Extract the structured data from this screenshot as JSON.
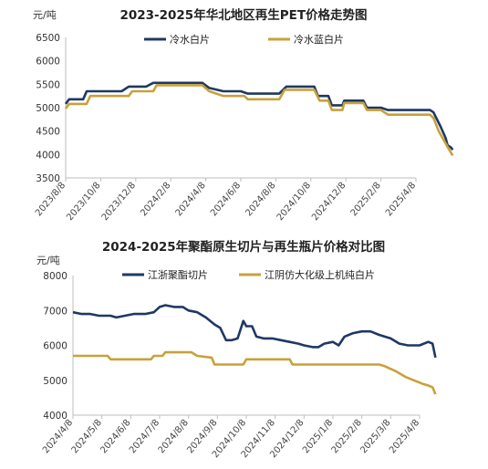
{
  "chart_data": [
    {
      "type": "line",
      "title": "2023-2025年华北地区再生PET价格走势图",
      "unit": "元/吨",
      "ylim": [
        3500,
        6500
      ],
      "yticks": [
        3500,
        4000,
        4500,
        5000,
        5500,
        6000,
        6500
      ],
      "xlabels": [
        "2023/8/8",
        "2023/10/8",
        "2023/12/8",
        "2024/2/8",
        "2024/4/8",
        "2024/6/8",
        "2024/8/8",
        "2024/10/8",
        "2024/12/8",
        "2025/2/8",
        "2025/4/8"
      ],
      "legend_position": "top",
      "series": [
        {
          "name": "冷水白片",
          "color": "#1f3864",
          "points": [
            [
              0,
              5080
            ],
            [
              0.1,
              5180
            ],
            [
              0.5,
              5180
            ],
            [
              0.6,
              5350
            ],
            [
              1.6,
              5350
            ],
            [
              1.8,
              5450
            ],
            [
              2.3,
              5450
            ],
            [
              2.5,
              5530
            ],
            [
              3.9,
              5530
            ],
            [
              4.1,
              5420
            ],
            [
              4.5,
              5350
            ],
            [
              5.0,
              5350
            ],
            [
              5.2,
              5300
            ],
            [
              6.1,
              5300
            ],
            [
              6.3,
              5450
            ],
            [
              7.1,
              5450
            ],
            [
              7.2,
              5250
            ],
            [
              7.5,
              5250
            ],
            [
              7.6,
              5050
            ],
            [
              7.9,
              5050
            ],
            [
              7.95,
              5150
            ],
            [
              8.5,
              5150
            ],
            [
              8.6,
              5000
            ],
            [
              9.0,
              5000
            ],
            [
              9.2,
              4950
            ],
            [
              10.4,
              4950
            ],
            [
              10.5,
              4900
            ],
            [
              10.7,
              4600
            ],
            [
              10.85,
              4350
            ],
            [
              10.9,
              4200
            ],
            [
              11.0,
              4150
            ],
            [
              11.05,
              4100
            ]
          ]
        },
        {
          "name": "冷水蓝白片",
          "color": "#c8a13a",
          "points": [
            [
              0,
              4980
            ],
            [
              0.1,
              5080
            ],
            [
              0.6,
              5080
            ],
            [
              0.7,
              5250
            ],
            [
              1.8,
              5250
            ],
            [
              1.9,
              5350
            ],
            [
              2.5,
              5350
            ],
            [
              2.6,
              5480
            ],
            [
              3.9,
              5480
            ],
            [
              4.1,
              5350
            ],
            [
              4.5,
              5250
            ],
            [
              5.1,
              5250
            ],
            [
              5.2,
              5180
            ],
            [
              6.1,
              5180
            ],
            [
              6.25,
              5380
            ],
            [
              7.1,
              5380
            ],
            [
              7.25,
              5150
            ],
            [
              7.5,
              5150
            ],
            [
              7.6,
              4950
            ],
            [
              7.9,
              4950
            ],
            [
              7.95,
              5100
            ],
            [
              8.5,
              5100
            ],
            [
              8.6,
              4950
            ],
            [
              9.0,
              4950
            ],
            [
              9.2,
              4850
            ],
            [
              10.4,
              4850
            ],
            [
              10.5,
              4780
            ],
            [
              10.65,
              4500
            ],
            [
              10.8,
              4300
            ],
            [
              10.95,
              4100
            ],
            [
              11.05,
              3980
            ]
          ]
        }
      ]
    },
    {
      "type": "line",
      "title": "2024-2025年聚酯原生切片与再生瓶片价格对比图",
      "unit": "元/吨",
      "ylim": [
        4000,
        8000
      ],
      "yticks": [
        4000,
        5000,
        6000,
        7000,
        8000
      ],
      "xlabels": [
        "2024/4/8",
        "2024/5/8",
        "2024/6/8",
        "2024/7/8",
        "2024/8/8",
        "2024/9/8",
        "2024/10/8",
        "2024/11/8",
        "2024/12/8",
        "2025/1/8",
        "2025/2/8",
        "2025/3/8",
        "2025/4/8"
      ],
      "legend_position": "top",
      "series": [
        {
          "name": "江浙聚酯切片",
          "color": "#1f3864",
          "points": [
            [
              0,
              6950
            ],
            [
              0.3,
              6900
            ],
            [
              0.6,
              6900
            ],
            [
              0.9,
              6850
            ],
            [
              1.3,
              6850
            ],
            [
              1.5,
              6800
            ],
            [
              1.8,
              6850
            ],
            [
              2.1,
              6900
            ],
            [
              2.5,
              6900
            ],
            [
              2.8,
              6950
            ],
            [
              3.0,
              7100
            ],
            [
              3.2,
              7150
            ],
            [
              3.5,
              7100
            ],
            [
              3.8,
              7100
            ],
            [
              4.0,
              7000
            ],
            [
              4.3,
              6950
            ],
            [
              4.6,
              6800
            ],
            [
              4.9,
              6600
            ],
            [
              5.1,
              6500
            ],
            [
              5.3,
              6150
            ],
            [
              5.5,
              6150
            ],
            [
              5.7,
              6200
            ],
            [
              5.9,
              6700
            ],
            [
              6.0,
              6550
            ],
            [
              6.2,
              6550
            ],
            [
              6.35,
              6250
            ],
            [
              6.6,
              6200
            ],
            [
              6.9,
              6200
            ],
            [
              7.2,
              6150
            ],
            [
              7.5,
              6100
            ],
            [
              7.8,
              6050
            ],
            [
              8.0,
              6000
            ],
            [
              8.3,
              5950
            ],
            [
              8.5,
              5950
            ],
            [
              8.7,
              6050
            ],
            [
              9.0,
              6100
            ],
            [
              9.2,
              6000
            ],
            [
              9.4,
              6250
            ],
            [
              9.7,
              6350
            ],
            [
              10.0,
              6400
            ],
            [
              10.3,
              6400
            ],
            [
              10.6,
              6300
            ],
            [
              11.0,
              6200
            ],
            [
              11.3,
              6050
            ],
            [
              11.6,
              6000
            ],
            [
              12.0,
              6000
            ],
            [
              12.3,
              6100
            ],
            [
              12.45,
              6050
            ],
            [
              12.55,
              5650
            ]
          ]
        },
        {
          "name": "江阴仿大化级上机纯白片",
          "color": "#c8a13a",
          "points": [
            [
              0,
              5700
            ],
            [
              0.5,
              5700
            ],
            [
              1.2,
              5700
            ],
            [
              1.3,
              5600
            ],
            [
              2.7,
              5600
            ],
            [
              2.8,
              5700
            ],
            [
              3.1,
              5700
            ],
            [
              3.2,
              5800
            ],
            [
              4.1,
              5800
            ],
            [
              4.3,
              5700
            ],
            [
              4.8,
              5650
            ],
            [
              4.9,
              5450
            ],
            [
              5.9,
              5450
            ],
            [
              6.0,
              5600
            ],
            [
              7.5,
              5600
            ],
            [
              7.6,
              5450
            ],
            [
              9.5,
              5450
            ],
            [
              9.6,
              5450
            ],
            [
              10.6,
              5450
            ],
            [
              10.8,
              5400
            ],
            [
              11.2,
              5250
            ],
            [
              11.5,
              5100
            ],
            [
              11.8,
              5000
            ],
            [
              12.1,
              4900
            ],
            [
              12.3,
              4850
            ],
            [
              12.45,
              4800
            ],
            [
              12.55,
              4600
            ]
          ]
        }
      ]
    }
  ]
}
